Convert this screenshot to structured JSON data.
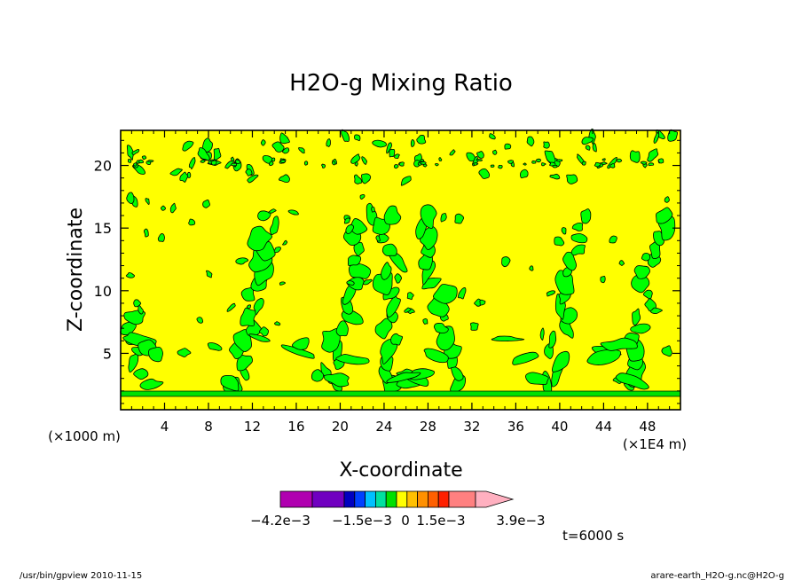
{
  "chart_data": {
    "type": "heatmap",
    "title": "H2O-g Mixing Ratio",
    "xlabel": "X-coordinate",
    "ylabel": "Z-coordinate",
    "x_unit": "(×1E4 m)",
    "y_unit": "(×1000 m)",
    "xlim": [
      0,
      51
    ],
    "ylim": [
      0.5,
      22.8
    ],
    "x_ticks": [
      4,
      8,
      12,
      16,
      20,
      24,
      28,
      32,
      36,
      40,
      44,
      48
    ],
    "y_ticks": [
      5,
      10,
      15,
      20
    ],
    "background_level_color": "#ffff00",
    "anomaly_level_color": "#00ff00",
    "contour_color": "#000000",
    "colorbar": {
      "colors": [
        "#b000b0",
        "#7000c0",
        "#0000c0",
        "#0040ff",
        "#00c0ff",
        "#00e0a0",
        "#00e000",
        "#ffff00",
        "#ffc000",
        "#ff9000",
        "#ff6000",
        "#ff2000",
        "#ff8080",
        "#ffb0c0"
      ],
      "labels": [
        {
          "value": -0.0042,
          "text": "−4.2e−3"
        },
        {
          "value": -0.0015,
          "text": "−1.5e−3"
        },
        {
          "value": 0,
          "text": "0"
        },
        {
          "value": 0.0015,
          "text": "1.5e−3"
        },
        {
          "value": 0.0039,
          "text": "3.9e−3"
        }
      ]
    },
    "time_label": "t=6000 s"
  },
  "footer": {
    "left": "/usr/bin/gpview  2010-11-15",
    "right": "arare-earth_H2O-g.nc@H2O-g"
  }
}
